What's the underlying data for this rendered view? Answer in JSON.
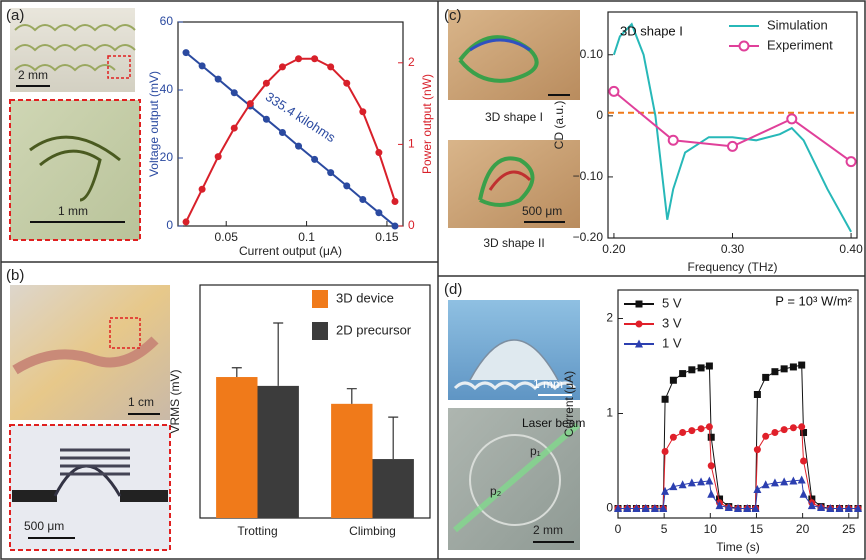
{
  "panel_labels": [
    "(a)",
    "(b)",
    "(c)",
    "(d)"
  ],
  "captions": [
    "2 mm",
    "1 mm",
    "1 cm",
    "500 μm",
    "3D shape I",
    "3D shape II",
    "500 μm",
    "1 mm",
    "Laser beam",
    "p₁",
    "p₂",
    "2 mm"
  ],
  "chart_data": [
    {
      "type": "line",
      "x": [
        0.025,
        0.035,
        0.045,
        0.055,
        0.065,
        0.075,
        0.085,
        0.095,
        0.105,
        0.115,
        0.125,
        0.135,
        0.145,
        0.155
      ],
      "xlim": [
        0.02,
        0.16
      ],
      "xticks": [
        0.05,
        0.1,
        0.15
      ],
      "ylim": [
        0,
        60
      ],
      "yticks": [
        0,
        20,
        40,
        60
      ],
      "y2lim": [
        0,
        2.5
      ],
      "y2ticks": [
        0,
        1,
        2
      ],
      "xlabel": "Current output (μA)",
      "ylabel": "Voltage output (mV)",
      "y2label": "Power output (nW)",
      "annotation": "335.4 kilohms",
      "series": [
        {
          "color": "#2b4aa0",
          "marker": "circle",
          "values": [
            51,
            47.1,
            43.2,
            39.2,
            35.3,
            31.4,
            27.5,
            23.5,
            19.6,
            15.7,
            11.8,
            7.8,
            3.9,
            0
          ]
        },
        {
          "color": "#d8202a",
          "marker": "circle",
          "axis": "y2",
          "values": [
            0.05,
            0.45,
            0.85,
            1.2,
            1.5,
            1.75,
            1.95,
            2.05,
            2.05,
            1.95,
            1.75,
            1.4,
            0.9,
            0.3
          ]
        }
      ]
    },
    {
      "type": "bar",
      "categories": [
        "Trotting",
        "Climbing"
      ],
      "ylim": [
        0,
        1
      ],
      "ylabel": "VRMS (mV)",
      "legend": "upper right",
      "series": [
        {
          "name": "3D device",
          "color": "#f07a1a",
          "values": [
            0.605,
            0.49
          ],
          "errors": [
            0.04,
            0.065
          ]
        },
        {
          "name": "2D precursor",
          "color": "#3c3c3c",
          "values": [
            0.567,
            0.253
          ],
          "errors": [
            0.27,
            0.18
          ]
        }
      ]
    },
    {
      "type": "line",
      "xlim": [
        0.195,
        0.405
      ],
      "xticks": [
        {
          "value": 0.2,
          "label": "0.20"
        },
        {
          "value": 0.3,
          "label": "0.30"
        },
        {
          "value": 0.4,
          "label": "0.40"
        }
      ],
      "ylim": [
        -0.2,
        0.17
      ],
      "yticks": [
        {
          "value": -0.2,
          "label": "−0.20"
        },
        {
          "value": -0.1,
          "label": "−0.10"
        },
        0,
        {
          "value": 0.1,
          "label": "0.10"
        }
      ],
      "xlabel": "Frequency (THz)",
      "ylabel": "CD (a.u.)",
      "annotation": "3D shape I",
      "legend": "upper right",
      "hline": 0.005,
      "hline_color": "#f07a1a",
      "series": [
        {
          "name": "Simulation",
          "color": "#27b8b8",
          "marker": "none",
          "x": [
            0.2,
            0.205,
            0.215,
            0.225,
            0.235,
            0.245,
            0.25,
            0.26,
            0.28,
            0.3,
            0.32,
            0.34,
            0.35,
            0.36,
            0.38,
            0.4
          ],
          "values": [
            0.1,
            0.13,
            0.15,
            0.1,
            0,
            -0.17,
            -0.12,
            -0.06,
            -0.035,
            -0.035,
            -0.04,
            -0.03,
            -0.02,
            -0.04,
            -0.12,
            -0.19
          ]
        },
        {
          "name": "Experiment",
          "color": "#e0409a",
          "marker": "open-circle",
          "x": [
            0.2,
            0.25,
            0.3,
            0.35,
            0.4
          ],
          "values": [
            0.04,
            -0.04,
            -0.05,
            -0.005,
            -0.075
          ]
        }
      ]
    },
    {
      "type": "line",
      "x": [
        0,
        1,
        2,
        3,
        4,
        4.9,
        5.1,
        6,
        7,
        8,
        9,
        9.9,
        10.1,
        11,
        12,
        13,
        14,
        14.9,
        15.1,
        16,
        17,
        18,
        19,
        19.9,
        20.1,
        21,
        22,
        23,
        24,
        25,
        26
      ],
      "xlim": [
        0,
        26
      ],
      "xticks": [
        0,
        5,
        10,
        15,
        20,
        25
      ],
      "ylim": [
        -0.1,
        2.3
      ],
      "yticks": [
        0,
        1,
        2
      ],
      "xlabel": "Time (s)",
      "ylabel": "Current (μA)",
      "annotation": "P = 10³ W/m²",
      "legend": "upper left",
      "series": [
        {
          "name": "5 V",
          "color": "#111111",
          "marker": "square",
          "values": [
            0,
            0,
            0,
            0,
            0,
            0,
            1.15,
            1.35,
            1.42,
            1.46,
            1.48,
            1.5,
            0.75,
            0.1,
            0.02,
            0,
            0,
            0,
            1.2,
            1.38,
            1.44,
            1.47,
            1.49,
            1.51,
            0.8,
            0.1,
            0.02,
            0,
            0,
            0,
            0
          ]
        },
        {
          "name": "3 V",
          "color": "#e0202a",
          "marker": "circle",
          "values": [
            0,
            0,
            0,
            0,
            0,
            0,
            0.6,
            0.75,
            0.8,
            0.82,
            0.84,
            0.86,
            0.45,
            0.06,
            0.01,
            0,
            0,
            0,
            0.62,
            0.76,
            0.8,
            0.83,
            0.85,
            0.86,
            0.5,
            0.06,
            0.01,
            0,
            0,
            0,
            0
          ]
        },
        {
          "name": "1 V",
          "color": "#2c3fb0",
          "marker": "triangle",
          "values": [
            0,
            0,
            0,
            0,
            0,
            0,
            0.18,
            0.23,
            0.25,
            0.27,
            0.28,
            0.29,
            0.15,
            0.03,
            0.01,
            0,
            0,
            0,
            0.2,
            0.25,
            0.27,
            0.28,
            0.29,
            0.3,
            0.15,
            0.03,
            0.01,
            0,
            0,
            0,
            0
          ]
        }
      ]
    }
  ]
}
